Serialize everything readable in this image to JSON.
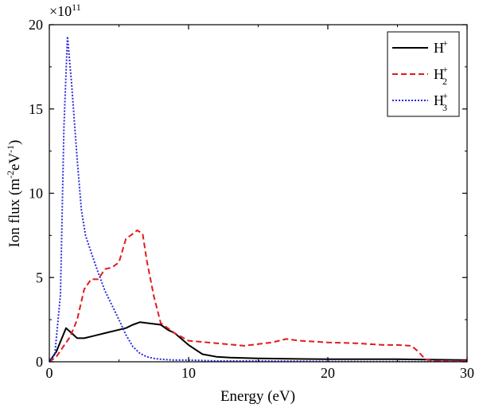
{
  "chart_data": {
    "type": "line",
    "xlabel": "Energy (eV)",
    "ylabel_parts": {
      "before": "Ion flux (m",
      "sup1": "-2",
      "mid": "eV",
      "sup2": "-1",
      "after": ")"
    },
    "y_multiplier": {
      "base": "×10",
      "exp": "11"
    },
    "xlim": [
      0,
      30
    ],
    "ylim": [
      0,
      20
    ],
    "xticks": [
      "0",
      "10",
      "20",
      "30"
    ],
    "yticks": [
      "0",
      "5",
      "10",
      "15",
      "20"
    ],
    "legend_position": "top-right",
    "grid": false,
    "series": [
      {
        "name": "H+",
        "legend": {
          "base": "H",
          "sup": "+",
          "sub": ""
        },
        "color": "#000000",
        "dash": "solid",
        "x": [
          0,
          0.5,
          0.8,
          1.2,
          1.6,
          2.0,
          2.5,
          3.0,
          4.0,
          5.0,
          5.5,
          6.0,
          6.5,
          7.0,
          8.0,
          8.5,
          9.0,
          10.0,
          11.0,
          12.0,
          13.0,
          15.0,
          20.0,
          25.0,
          30.0
        ],
        "y": [
          0,
          0.6,
          1.2,
          2.0,
          1.7,
          1.4,
          1.4,
          1.5,
          1.7,
          1.9,
          2.0,
          2.2,
          2.35,
          2.3,
          2.2,
          1.9,
          1.7,
          1.0,
          0.45,
          0.3,
          0.25,
          0.2,
          0.15,
          0.15,
          0.1
        ]
      },
      {
        "name": "H2+",
        "legend": {
          "base": "H",
          "sup": "+",
          "sub": "2"
        },
        "color": "#e41a1c",
        "dash": "dashed",
        "x": [
          0,
          0.5,
          1.0,
          1.5,
          2.0,
          2.5,
          3.0,
          3.5,
          4.0,
          4.5,
          5.0,
          5.5,
          6.0,
          6.3,
          6.7,
          7.0,
          7.5,
          8.0,
          9.0,
          10.0,
          12.0,
          14.0,
          15.0,
          16.0,
          17.0,
          18.0,
          19.0,
          20.0,
          22.0,
          24.0,
          25.0,
          26.0,
          26.5,
          27.0,
          27.5,
          28.0,
          30.0
        ],
        "y": [
          0,
          0.3,
          0.9,
          1.5,
          2.5,
          4.3,
          4.9,
          4.9,
          5.5,
          5.6,
          5.9,
          7.3,
          7.6,
          7.8,
          7.6,
          6.0,
          3.9,
          2.3,
          1.7,
          1.25,
          1.1,
          0.95,
          1.05,
          1.15,
          1.35,
          1.25,
          1.2,
          1.15,
          1.1,
          1.0,
          1.0,
          0.95,
          0.6,
          0.15,
          0.05,
          0.05,
          0.05
        ]
      },
      {
        "name": "H3+",
        "legend": {
          "base": "H",
          "sup": "+",
          "sub": "3"
        },
        "color": "#2a2adb",
        "dash": "dotted",
        "x": [
          0,
          0.4,
          0.8,
          1.05,
          1.3,
          1.6,
          2.0,
          2.3,
          2.6,
          3.0,
          3.5,
          4.0,
          5.0,
          5.5,
          6.0,
          6.5,
          7.0,
          7.5,
          8.0,
          9.0,
          10.0,
          12.0,
          15.0,
          20.0,
          30.0
        ],
        "y": [
          0,
          0.5,
          4.0,
          14.0,
          19.3,
          16.5,
          12.0,
          9.0,
          7.5,
          6.5,
          5.3,
          4.2,
          2.5,
          1.6,
          0.9,
          0.5,
          0.3,
          0.2,
          0.15,
          0.1,
          0.1,
          0.05,
          0.05,
          0.02,
          0.0
        ]
      }
    ]
  }
}
